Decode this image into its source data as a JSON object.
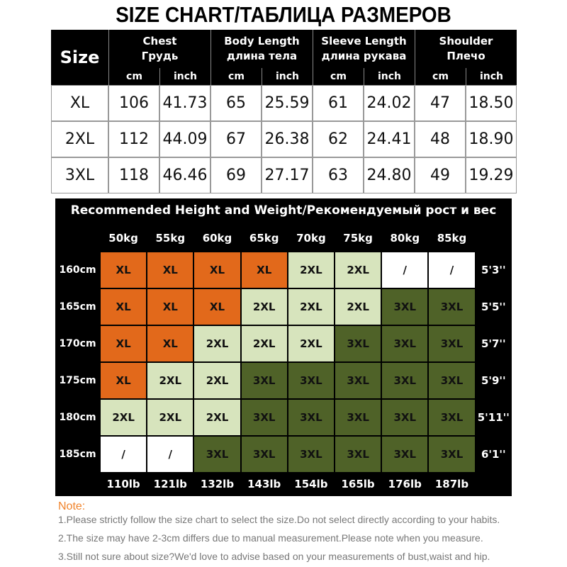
{
  "title": "SIZE CHART/ТАБЛИЦА РАЗМЕРОВ",
  "size_table": {
    "corner": "Size",
    "columns": [
      {
        "name": "Chest",
        "name_ru": "Грудь",
        "units": [
          "cm",
          "inch"
        ]
      },
      {
        "name": "Body Length",
        "name_ru": "длина тела",
        "units": [
          "cm",
          "inch"
        ]
      },
      {
        "name": "Sleeve Length",
        "name_ru": "длина рукава",
        "units": [
          "cm",
          "inch"
        ]
      },
      {
        "name": "Shoulder",
        "name_ru": "Плечо",
        "units": [
          "cm",
          "inch"
        ]
      }
    ],
    "rows": [
      {
        "size": "XL",
        "values": [
          "106",
          "41.73",
          "65",
          "25.59",
          "61",
          "24.02",
          "47",
          "18.50"
        ]
      },
      {
        "size": "2XL",
        "values": [
          "112",
          "44.09",
          "67",
          "26.38",
          "62",
          "24.41",
          "48",
          "18.90"
        ]
      },
      {
        "size": "3XL",
        "values": [
          "118",
          "46.46",
          "69",
          "27.17",
          "63",
          "24.80",
          "49",
          "19.29"
        ]
      }
    ]
  },
  "recommend_table": {
    "title": "Recommended Height and Weight/Рекомендуемый рост и вес",
    "weights_kg": [
      "50kg",
      "55kg",
      "60kg",
      "65kg",
      "70kg",
      "75kg",
      "80kg",
      "85kg"
    ],
    "weights_lb": [
      "110lb",
      "121lb",
      "132lb",
      "143lb",
      "154lb",
      "165lb",
      "176lb",
      "187lb"
    ],
    "heights_cm": [
      "160cm",
      "165cm",
      "170cm",
      "175cm",
      "180cm",
      "185cm"
    ],
    "heights_ft": [
      "5'3''",
      "5'5''",
      "5'7''",
      "5'9''",
      "5'11''",
      "6'1''"
    ],
    "cell_colors": {
      "XL": "#e2691b",
      "2XL": "#d7e4bd",
      "3XL": "#4f6228",
      "/": "#ffffff"
    },
    "rows": [
      [
        "XL",
        "XL",
        "XL",
        "XL",
        "2XL",
        "2XL",
        "/",
        "/"
      ],
      [
        "XL",
        "XL",
        "XL",
        "2XL",
        "2XL",
        "2XL",
        "3XL",
        "3XL"
      ],
      [
        "XL",
        "XL",
        "2XL",
        "2XL",
        "2XL",
        "3XL",
        "3XL",
        "3XL"
      ],
      [
        "XL",
        "2XL",
        "2XL",
        "3XL",
        "3XL",
        "3XL",
        "3XL",
        "3XL"
      ],
      [
        "2XL",
        "2XL",
        "2XL",
        "3XL",
        "3XL",
        "3XL",
        "3XL",
        "3XL"
      ],
      [
        "/",
        "/",
        "3XL",
        "3XL",
        "3XL",
        "3XL",
        "3XL",
        "3XL"
      ]
    ]
  },
  "notes": {
    "heading": "Note:",
    "lines": [
      "1.Please strictly follow the size chart to select the size.Do not select directly according to your habits.",
      "2.The size may have 2-3cm differs due to manual measurement.Please note when you measure.",
      "3.Still not sure about size?We'd love to advise based on your measurements of bust,waist and hip."
    ]
  }
}
